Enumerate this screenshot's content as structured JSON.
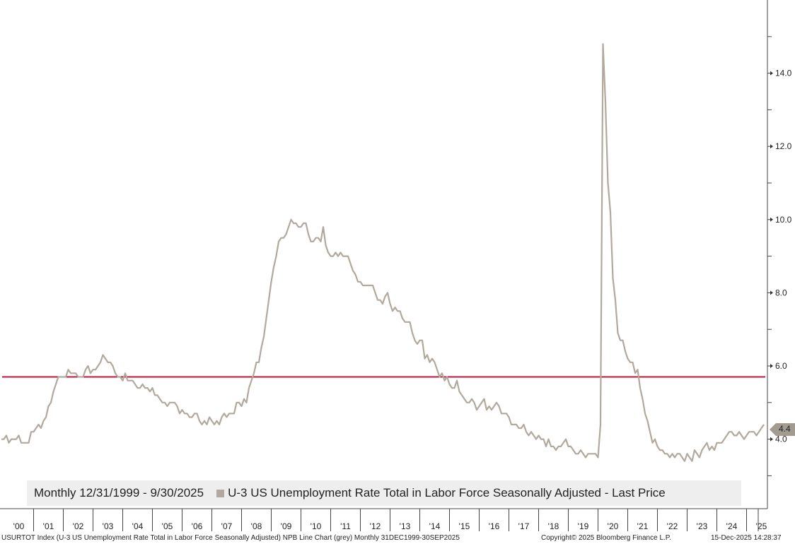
{
  "legend": {
    "period": "Monthly 12/31/1999 - 9/30/2025",
    "series_label": "U-3 US Unemployment Rate Total in Labor Force Seasonally Adjusted - Last Price"
  },
  "footer": {
    "left": "USURTOT Index (U-3 US Unemployment Rate Total in Labor Force Seasonally Adjusted) NPB Line Chart (grey) Monthly 31DEC1999-30SEP2025",
    "copyright": "Copyright© 2025 Bloomberg Finance L.P.",
    "timestamp": "15-Dec-2025 14:28:37"
  },
  "last_value_label": "4.4",
  "colors": {
    "series": "#b1a99e",
    "hline": "#c0143c",
    "axis": "#444444",
    "legend_bg": "#eeeeee"
  },
  "chart_data": {
    "type": "line",
    "x_start": "1999-12",
    "x_end": "2025-09",
    "x_ticks": [
      "'00",
      "'01",
      "'02",
      "'03",
      "'04",
      "'05",
      "'06",
      "'07",
      "'08",
      "'09",
      "'10",
      "'11",
      "'12",
      "'13",
      "'14",
      "'15",
      "'16",
      "'17",
      "'18",
      "'19",
      "'20",
      "'21",
      "'22",
      "'23",
      "'24",
      "'25"
    ],
    "y_ticks": [
      "4.0",
      "6.0",
      "8.0",
      "10.0",
      "12.0",
      "14.0"
    ],
    "ylim": [
      2.1,
      16.0
    ],
    "grid": false,
    "hline": 5.7,
    "series": [
      {
        "values": [
          4.0,
          4.0,
          4.1,
          3.9,
          4.0,
          4.0,
          4.0,
          4.1,
          3.9,
          3.9,
          3.9,
          3.9,
          4.2,
          4.2,
          4.3,
          4.4,
          4.3,
          4.5,
          4.6,
          4.9,
          5.0,
          5.3,
          5.5,
          5.7,
          5.7,
          5.7,
          5.7,
          5.9,
          5.8,
          5.8,
          5.8,
          5.7,
          5.7,
          5.7,
          5.9,
          6.0,
          5.8,
          5.9,
          5.9,
          6.0,
          6.1,
          6.3,
          6.2,
          6.1,
          6.1,
          6.0,
          5.8,
          5.7,
          5.7,
          5.6,
          5.8,
          5.6,
          5.6,
          5.6,
          5.5,
          5.4,
          5.4,
          5.5,
          5.4,
          5.4,
          5.3,
          5.4,
          5.2,
          5.2,
          5.1,
          5.0,
          5.0,
          4.9,
          5.0,
          5.0,
          5.0,
          4.9,
          4.7,
          4.8,
          4.7,
          4.7,
          4.6,
          4.6,
          4.7,
          4.7,
          4.5,
          4.4,
          4.5,
          4.4,
          4.6,
          4.5,
          4.4,
          4.5,
          4.4,
          4.6,
          4.7,
          4.6,
          4.7,
          4.7,
          4.7,
          5.0,
          5.0,
          4.9,
          5.1,
          5.0,
          5.4,
          5.6,
          5.8,
          6.1,
          6.1,
          6.5,
          6.8,
          7.3,
          7.8,
          8.3,
          8.7,
          9.0,
          9.4,
          9.5,
          9.5,
          9.6,
          9.8,
          10.0,
          9.9,
          9.9,
          9.8,
          9.8,
          9.9,
          9.9,
          9.6,
          9.4,
          9.4,
          9.5,
          9.5,
          9.4,
          9.8,
          9.3,
          9.1,
          9.0,
          9.0,
          9.1,
          9.0,
          9.1,
          9.0,
          9.0,
          9.0,
          8.8,
          8.6,
          8.5,
          8.3,
          8.3,
          8.2,
          8.2,
          8.2,
          8.2,
          8.2,
          8.0,
          7.8,
          7.8,
          7.7,
          7.9,
          8.0,
          7.7,
          7.5,
          7.6,
          7.5,
          7.5,
          7.3,
          7.2,
          7.2,
          7.2,
          6.9,
          6.7,
          6.6,
          6.7,
          6.7,
          6.2,
          6.3,
          6.1,
          6.2,
          6.1,
          5.9,
          5.7,
          5.8,
          5.6,
          5.7,
          5.5,
          5.4,
          5.4,
          5.6,
          5.3,
          5.2,
          5.1,
          5.0,
          5.0,
          5.1,
          5.0,
          4.8,
          4.9,
          5.0,
          5.1,
          4.8,
          4.9,
          4.8,
          4.9,
          5.0,
          4.9,
          4.7,
          4.7,
          4.7,
          4.6,
          4.4,
          4.4,
          4.4,
          4.3,
          4.3,
          4.4,
          4.2,
          4.1,
          4.2,
          4.1,
          4.0,
          4.1,
          4.0,
          4.0,
          3.8,
          4.0,
          3.8,
          3.8,
          3.7,
          3.8,
          3.8,
          3.9,
          4.0,
          3.8,
          3.8,
          3.7,
          3.6,
          3.6,
          3.7,
          3.6,
          3.5,
          3.6,
          3.6,
          3.6,
          3.6,
          3.5,
          4.4,
          14.8,
          13.2,
          11.0,
          10.2,
          8.4,
          7.8,
          6.9,
          6.7,
          6.7,
          6.4,
          6.2,
          6.1,
          6.1,
          5.8,
          5.9,
          5.4,
          5.1,
          4.7,
          4.5,
          4.2,
          3.9,
          4.0,
          3.8,
          3.7,
          3.7,
          3.6,
          3.6,
          3.5,
          3.6,
          3.5,
          3.6,
          3.6,
          3.5,
          3.4,
          3.6,
          3.5,
          3.4,
          3.7,
          3.6,
          3.5,
          3.7,
          3.8,
          3.9,
          3.7,
          3.8,
          3.7,
          3.9,
          3.9,
          3.9,
          4.0,
          4.1,
          4.2,
          4.2,
          4.1,
          4.1,
          4.2,
          4.1,
          4.0,
          4.1,
          4.2,
          4.2,
          4.2,
          4.1,
          4.2,
          4.3,
          4.4
        ]
      }
    ]
  }
}
